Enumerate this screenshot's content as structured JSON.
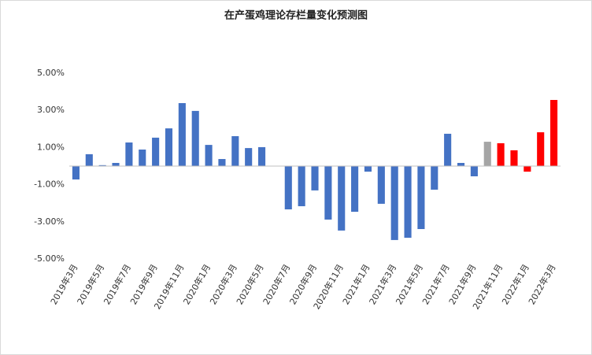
{
  "chart_data": {
    "type": "bar",
    "title": "在产蛋鸡理论存栏量变化预测图",
    "categories": [
      "2019年3月",
      null,
      "2019年5月",
      null,
      "2019年7月",
      null,
      "2019年9月",
      null,
      "2019年11月",
      null,
      "2020年1月",
      null,
      "2020年3月",
      null,
      "2020年5月",
      null,
      "2020年7月",
      null,
      "2020年9月",
      null,
      "2020年11月",
      null,
      "2021年1月",
      null,
      "2021年3月",
      null,
      "2021年5月",
      null,
      "2021年7月",
      null,
      "2021年9月",
      null,
      "2021年11月",
      null,
      "2022年1月",
      null,
      "2022年3月"
    ],
    "values": [
      -0.72,
      0.64,
      0.05,
      0.17,
      1.27,
      0.89,
      1.53,
      2.03,
      3.39,
      2.97,
      1.14,
      0.38,
      1.61,
      0.97,
      1.02,
      0,
      -2.33,
      -2.16,
      -1.31,
      -2.88,
      -3.47,
      -2.46,
      -0.3,
      -2.03,
      -3.98,
      -3.86,
      -3.39,
      -1.27,
      1.74,
      0.17,
      -0.55,
      1.31,
      1.23,
      0.85,
      -0.3,
      1.82,
      3.56
    ],
    "colors": [
      "#4472c4",
      "#4472c4",
      "#4472c4",
      "#4472c4",
      "#4472c4",
      "#4472c4",
      "#4472c4",
      "#4472c4",
      "#4472c4",
      "#4472c4",
      "#4472c4",
      "#4472c4",
      "#4472c4",
      "#4472c4",
      "#4472c4",
      "#4472c4",
      "#4472c4",
      "#4472c4",
      "#4472c4",
      "#4472c4",
      "#4472c4",
      "#4472c4",
      "#4472c4",
      "#4472c4",
      "#4472c4",
      "#4472c4",
      "#4472c4",
      "#4472c4",
      "#4472c4",
      "#4472c4",
      "#4472c4",
      "#a5a5a5",
      "#ff0000",
      "#ff0000",
      "#ff0000",
      "#ff0000",
      "#ff0000"
    ],
    "ylim": [
      -5,
      5
    ],
    "yticks": [
      {
        "value": -5,
        "label": "-5.00%"
      },
      {
        "value": -3,
        "label": "-3.00%"
      },
      {
        "value": -1,
        "label": "-1.00%"
      },
      {
        "value": 1,
        "label": "1.00%"
      },
      {
        "value": 3,
        "label": "3.00%"
      },
      {
        "value": 5,
        "label": "5.00%"
      }
    ],
    "grid": false
  }
}
